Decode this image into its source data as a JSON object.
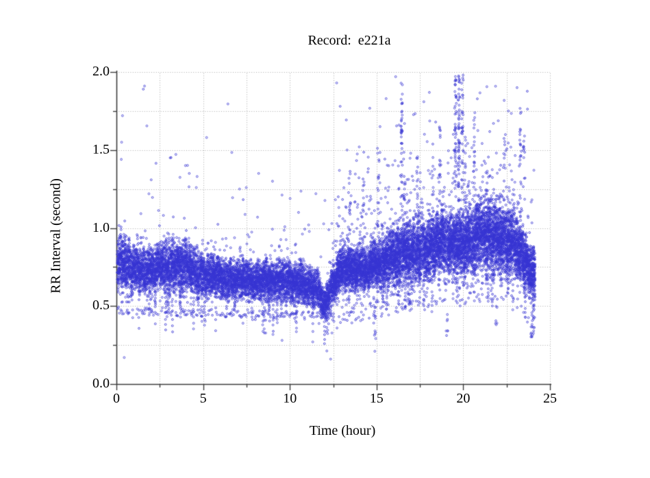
{
  "page": {
    "background": "#ffffff"
  },
  "chart_data": {
    "type": "scatter",
    "title": "Record:  e221a",
    "xlabel": "Time (hour)",
    "ylabel": "RR Interval (second)",
    "xlim": [
      0,
      25
    ],
    "ylim": [
      0.0,
      2.0
    ],
    "x_major_ticks": [
      0,
      5,
      10,
      15,
      20,
      25
    ],
    "x_tick_labels": [
      "0",
      "5",
      "10",
      "15",
      "20",
      "25"
    ],
    "x_minor_tick_step": 2.5,
    "y_major_ticks": [
      0.0,
      0.5,
      1.0,
      1.5,
      2.0
    ],
    "y_tick_labels": [
      "0.0",
      "0.5",
      "1.0",
      "1.5",
      "2.0"
    ],
    "y_minor_tick_step": 0.25,
    "grid": {
      "style": "dotted",
      "color": "#a9a9a9",
      "horizontal_every": 0.25,
      "vertical_every": 2.5
    },
    "legend": "none",
    "axes_color": "#3c3c3c",
    "point_color": "#3634d2",
    "point_style": "open-circle",
    "point_radius_px": 1.4,
    "data_start_hour": 0.05,
    "data_end_hour": 24.15,
    "seed": 911,
    "band_points_per_column_base": 16,
    "band_envelope": [
      [
        0.0,
        0.78,
        0.15
      ],
      [
        0.5,
        0.76,
        0.15
      ],
      [
        1.0,
        0.74,
        0.13
      ],
      [
        2.0,
        0.73,
        0.13
      ],
      [
        3.0,
        0.74,
        0.14
      ],
      [
        4.0,
        0.76,
        0.15
      ],
      [
        4.6,
        0.71,
        0.12
      ],
      [
        5.5,
        0.69,
        0.12
      ],
      [
        6.5,
        0.67,
        0.11
      ],
      [
        7.5,
        0.67,
        0.11
      ],
      [
        8.5,
        0.66,
        0.11
      ],
      [
        9.5,
        0.67,
        0.12
      ],
      [
        10.5,
        0.65,
        0.11
      ],
      [
        11.3,
        0.63,
        0.11
      ],
      [
        11.8,
        0.56,
        0.1
      ],
      [
        12.1,
        0.52,
        0.09
      ],
      [
        12.4,
        0.62,
        0.1
      ],
      [
        12.8,
        0.71,
        0.12
      ],
      [
        13.5,
        0.74,
        0.13
      ],
      [
        14.5,
        0.75,
        0.13
      ],
      [
        15.2,
        0.78,
        0.15
      ],
      [
        16.0,
        0.82,
        0.16
      ],
      [
        17.0,
        0.85,
        0.17
      ],
      [
        18.0,
        0.87,
        0.18
      ],
      [
        19.0,
        0.91,
        0.19
      ],
      [
        19.8,
        0.89,
        0.18
      ],
      [
        20.5,
        0.93,
        0.19
      ],
      [
        21.2,
        0.95,
        0.2
      ],
      [
        22.0,
        0.94,
        0.2
      ],
      [
        22.8,
        0.92,
        0.19
      ],
      [
        23.3,
        0.85,
        0.17
      ],
      [
        23.7,
        0.75,
        0.15
      ],
      [
        24.15,
        0.7,
        0.13
      ]
    ],
    "pvc_band": {
      "hours": [
        0,
        12.4
      ],
      "rr_start": 0.47,
      "rr_end": 0.44,
      "jitter": 0.025,
      "per_column_probability": 0.55
    },
    "between_band_scatter_left": {
      "hours": [
        0,
        12.4
      ],
      "per_column_probability": 0.3
    },
    "below_band_scatter_right": {
      "hours": [
        12.4,
        24.15
      ],
      "offset_min": 0.02,
      "offset_max": 0.22,
      "per_column_probability": 0.6
    },
    "high_outliers_left": {
      "hours": [
        0,
        12.4
      ],
      "per_column_probability": 0.3,
      "decay": 0.18,
      "cap": 1.9
    },
    "high_outliers_right": {
      "hours": [
        12.4,
        24.15
      ],
      "per_column_probability": 0.72,
      "decay": 0.26,
      "cap": 1.97
    },
    "high_cluster_left": {
      "hours": [
        1.8,
        4.8
      ],
      "rr": [
        1.25,
        1.48
      ],
      "per_column_probability": 0.15
    },
    "streaks_up": [
      [
        13.45,
        0.95,
        1.35,
        14
      ],
      [
        14.25,
        1.0,
        1.3,
        10
      ],
      [
        15.1,
        1.0,
        1.55,
        16
      ],
      [
        16.45,
        1.05,
        1.95,
        40
      ],
      [
        16.6,
        1.0,
        1.5,
        14
      ],
      [
        17.35,
        1.0,
        1.5,
        14
      ],
      [
        18.25,
        1.0,
        1.5,
        12
      ],
      [
        18.65,
        1.05,
        1.65,
        16
      ],
      [
        19.55,
        1.15,
        2.0,
        45
      ],
      [
        19.75,
        1.05,
        2.0,
        60
      ],
      [
        19.95,
        1.25,
        2.0,
        30
      ],
      [
        20.1,
        1.1,
        1.6,
        15
      ],
      [
        20.65,
        1.05,
        1.75,
        20
      ],
      [
        21.35,
        1.0,
        1.5,
        12
      ],
      [
        22.35,
        1.05,
        1.6,
        16
      ],
      [
        23.3,
        1.05,
        1.8,
        20
      ],
      [
        23.5,
        1.2,
        1.6,
        10
      ]
    ],
    "streaks_down": [
      [
        11.9,
        0.42,
        0.55,
        10
      ],
      [
        12.15,
        0.2,
        0.45,
        8
      ],
      [
        14.9,
        0.28,
        0.5,
        8
      ],
      [
        16.9,
        0.45,
        0.6,
        8
      ],
      [
        19.05,
        0.3,
        0.5,
        6
      ],
      [
        21.9,
        0.38,
        0.55,
        6
      ],
      [
        23.95,
        0.28,
        0.55,
        12
      ],
      [
        24.05,
        0.3,
        0.5,
        8
      ]
    ],
    "isolated_points": [
      [
        1.55,
        1.89
      ],
      [
        1.62,
        1.91
      ],
      [
        0.35,
        1.72
      ],
      [
        0.3,
        1.55
      ],
      [
        0.28,
        1.44
      ],
      [
        3.1,
        1.45
      ],
      [
        5.2,
        1.58
      ],
      [
        8.2,
        1.35
      ],
      [
        9.0,
        1.3
      ],
      [
        7.1,
        1.25
      ],
      [
        10.5,
        1.1
      ],
      [
        11.5,
        1.22
      ],
      [
        4.2,
        1.35
      ],
      [
        12.7,
        1.93
      ],
      [
        12.9,
        1.78
      ],
      [
        13.3,
        1.5
      ],
      [
        14.0,
        1.52
      ],
      [
        15.2,
        1.65
      ],
      [
        16.1,
        1.97
      ],
      [
        19.3,
        1.45
      ],
      [
        22.6,
        1.75
      ],
      [
        23.1,
        1.9
      ],
      [
        0.45,
        0.17
      ],
      [
        9.55,
        0.28
      ],
      [
        12.35,
        0.16
      ],
      [
        14.9,
        0.21
      ],
      [
        19.1,
        0.34
      ],
      [
        23.9,
        0.32
      ]
    ]
  }
}
